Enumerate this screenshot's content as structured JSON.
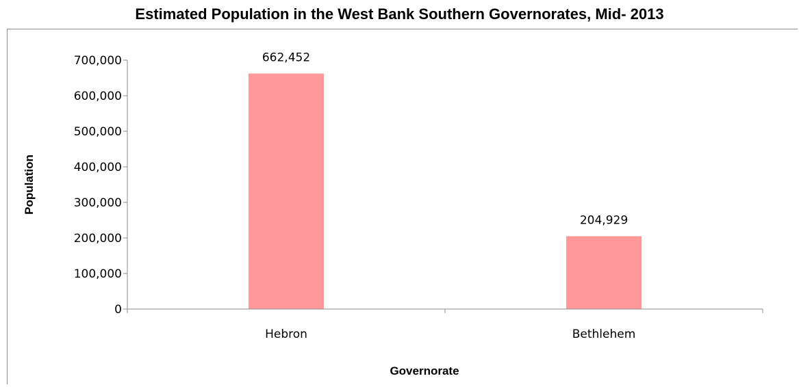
{
  "chart_data": {
    "type": "bar",
    "title": "Estimated Population in the West Bank Southern Governorates, Mid- 2013",
    "xlabel": "Governorate",
    "ylabel": "Population",
    "categories": [
      "Hebron",
      "Bethlehem"
    ],
    "values": [
      662452,
      204929
    ],
    "data_labels": [
      "662,452",
      "204,929"
    ],
    "ylim": [
      0,
      700000
    ],
    "yticks": [
      0,
      100000,
      200000,
      300000,
      400000,
      500000,
      600000,
      700000
    ],
    "ytick_labels": [
      "0",
      "100,000",
      "200,000",
      "300,000",
      "400,000",
      "500,000",
      "600,000",
      "700,000"
    ],
    "bar_color": "#ff9999",
    "grid": false,
    "legend": "none"
  }
}
